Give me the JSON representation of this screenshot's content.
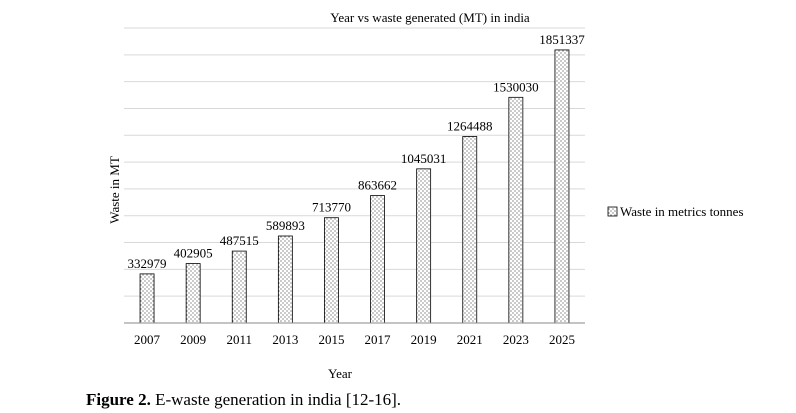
{
  "chart_data": {
    "type": "bar",
    "title": "Year vs waste generated (MT) in india",
    "xlabel": "Year",
    "ylabel": "Waste in MT",
    "categories": [
      "2007",
      "2009",
      "2011",
      "2013",
      "2015",
      "2017",
      "2019",
      "2021",
      "2023",
      "2025"
    ],
    "series": [
      {
        "name": "Waste in metrics tonnes",
        "values": [
          332979,
          402905,
          487515,
          589893,
          713770,
          863662,
          1045031,
          1264488,
          1530030,
          1851337
        ]
      }
    ],
    "ylim": [
      0,
      2000000
    ],
    "gridlines": true,
    "legend_position": "right",
    "bar_fill": "dotted pattern"
  },
  "caption": {
    "label": "Figure 2.",
    "text": " E-waste generation in india [12-16]."
  }
}
